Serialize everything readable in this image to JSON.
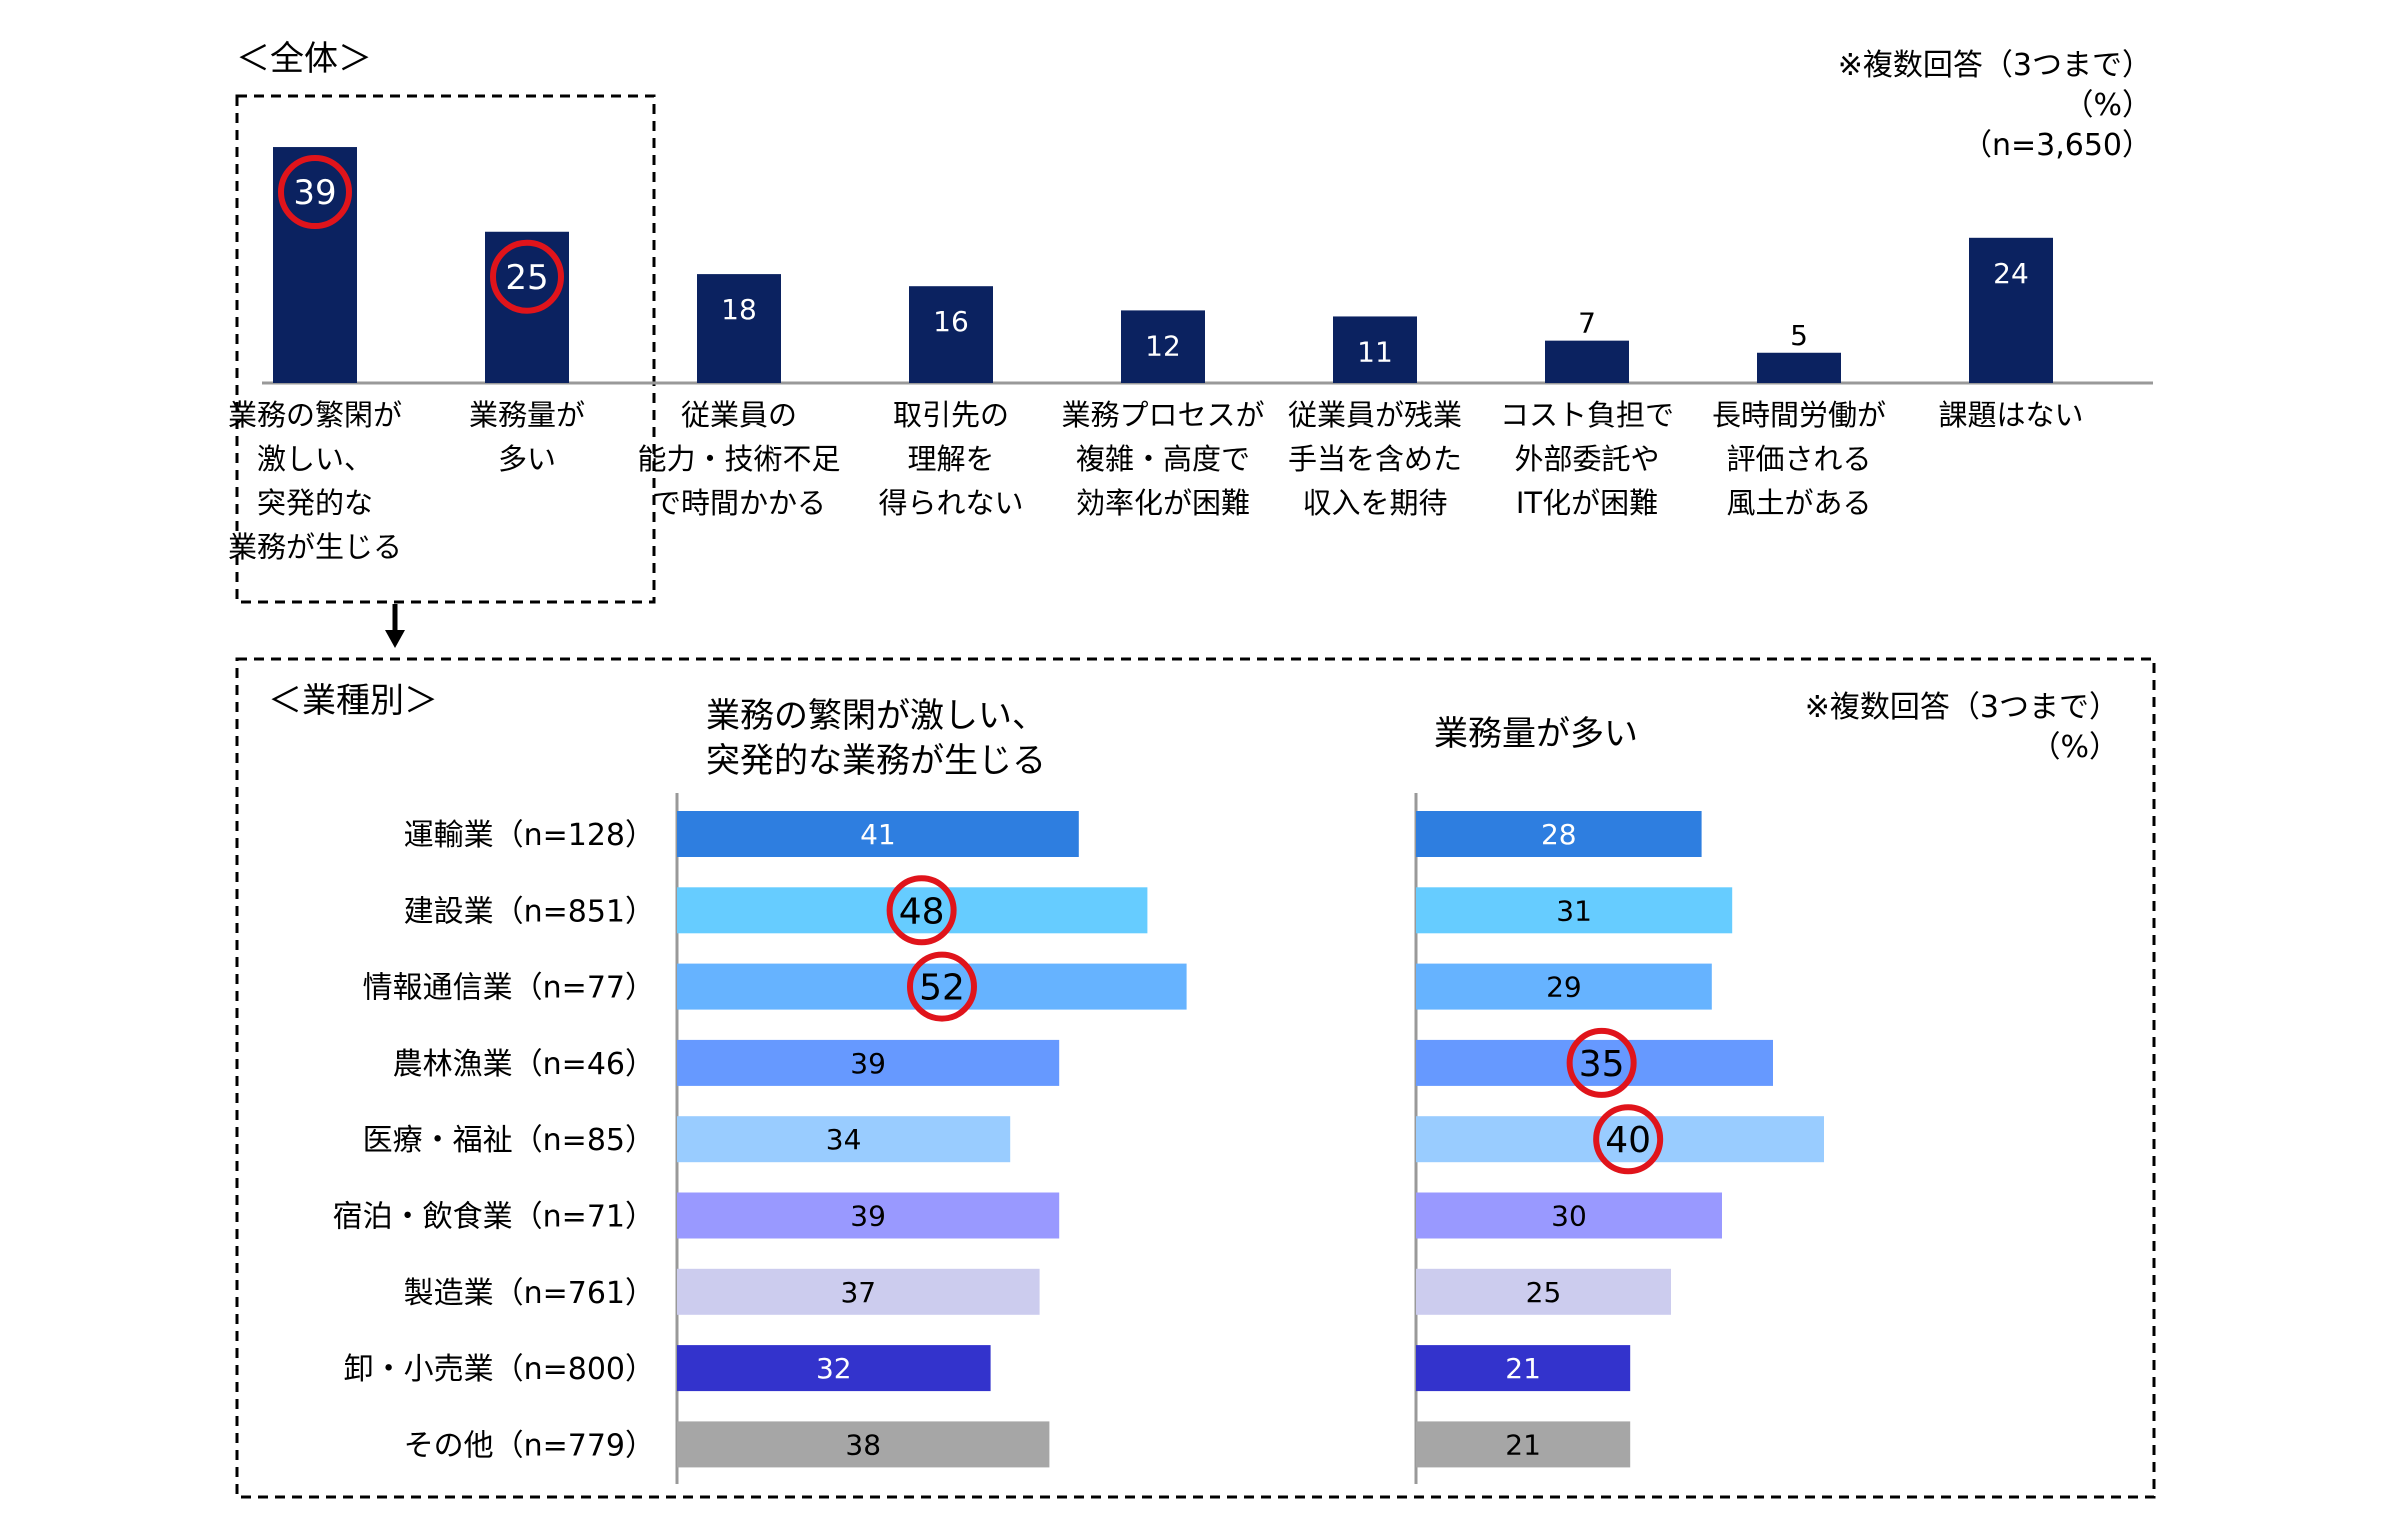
{
  "overall": {
    "title": "＜全体＞",
    "notes": [
      "※複数回答（3つまで）",
      "（%）",
      "（n=3,650）"
    ],
    "highlight_color": "#e0141b",
    "bar_color": "#0b2260",
    "axis_color": "#999999"
  },
  "industry": {
    "title": "＜業種別＞",
    "notes": [
      "※複数回答（3つまで）",
      "（%）"
    ],
    "panel1_title": [
      "業務の繁閑が激しい、",
      "突発的な業務が生じる"
    ],
    "panel2_title": "業務量が多い",
    "categories": [
      "運輸業（n=128）",
      "建設業（n=851）",
      "情報通信業（n=77）",
      "農林漁業（n=46）",
      "医療・福祉（n=85）",
      "宿泊・飲食業（n=71）",
      "製造業（n=761）",
      "卸・小売業（n=800）",
      "その他（n=779）"
    ],
    "colors": [
      "#2e7ee0",
      "#66ccff",
      "#66b3ff",
      "#6699ff",
      "#99ccff",
      "#9999ff",
      "#ccccee",
      "#3333cc",
      "#a6a6a6"
    ],
    "label_colors": [
      "#ffffff",
      "#000000",
      "#000000",
      "#000000",
      "#000000",
      "#000000",
      "#000000",
      "#ffffff",
      "#000000"
    ]
  },
  "chart_data": [
    {
      "type": "bar",
      "title": "＜全体＞",
      "categories": [
        [
          "業務の繁閑が",
          "激しい、",
          "突発的な",
          "業務が生じる"
        ],
        [
          "業務量が",
          "多い"
        ],
        [
          "従業員の",
          "能力・技術不足",
          "で時間かかる"
        ],
        [
          "取引先の",
          "理解を",
          "得られない"
        ],
        [
          "業務プロセスが",
          "複雑・高度で",
          "効率化が困難"
        ],
        [
          "従業員が残業",
          "手当を含めた",
          "収入を期待"
        ],
        [
          "コスト負担で",
          "外部委託や",
          "IT化が困難"
        ],
        [
          "長時間労働が",
          "評価される",
          "風土がある"
        ],
        [
          "課題はない"
        ]
      ],
      "values": [
        39,
        25,
        18,
        16,
        12,
        11,
        7,
        5,
        24
      ],
      "highlighted": [
        0,
        1
      ],
      "ylim": [
        0,
        40
      ],
      "grid": false
    },
    {
      "type": "bar",
      "orientation": "horizontal",
      "title": "業務の繁閑が激しい、突発的な業務が生じる",
      "categories": [
        "運輸業（n=128）",
        "建設業（n=851）",
        "情報通信業（n=77）",
        "農林漁業（n=46）",
        "医療・福祉（n=85）",
        "宿泊・飲食業（n=71）",
        "製造業（n=761）",
        "卸・小売業（n=800）",
        "その他（n=779）"
      ],
      "values": [
        41,
        48,
        52,
        39,
        34,
        39,
        37,
        32,
        38
      ],
      "highlighted": [
        1,
        2
      ],
      "xlim": [
        0,
        52
      ],
      "grid": false
    },
    {
      "type": "bar",
      "orientation": "horizontal",
      "title": "業務量が多い",
      "categories": [
        "運輸業（n=128）",
        "建設業（n=851）",
        "情報通信業（n=77）",
        "農林漁業（n=46）",
        "医療・福祉（n=85）",
        "宿泊・飲食業（n=71）",
        "製造業（n=761）",
        "卸・小売業（n=800）",
        "その他（n=779）"
      ],
      "values": [
        28,
        31,
        29,
        35,
        40,
        30,
        25,
        21,
        21
      ],
      "highlighted": [
        3,
        4
      ],
      "xlim": [
        0,
        40
      ],
      "grid": false
    }
  ]
}
